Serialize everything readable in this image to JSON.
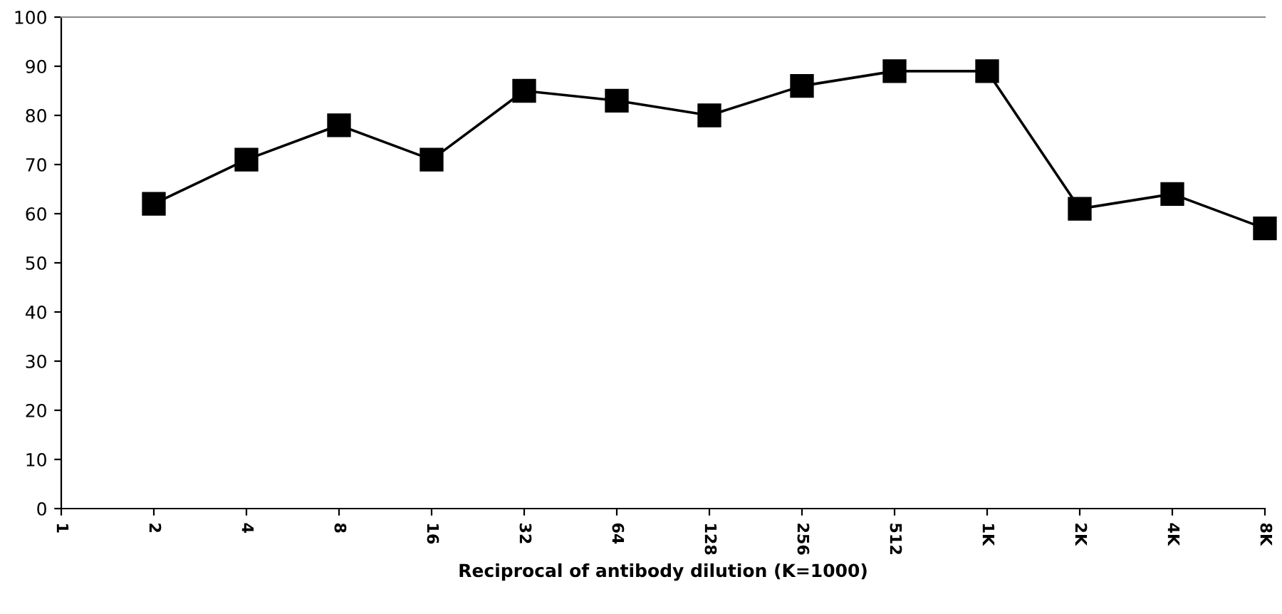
{
  "chart_data": {
    "type": "line",
    "xlabel": "Reciprocal of antibody dilution (K=1000)",
    "categories": [
      "1",
      "2",
      "4",
      "8",
      "16",
      "32",
      "64",
      "128",
      "256",
      "512",
      "1K",
      "2K",
      "4K",
      "8K"
    ],
    "series": [
      {
        "color": "#000000",
        "values": [
          null,
          62,
          71,
          78,
          71,
          85,
          83,
          80,
          86,
          89,
          89,
          61,
          64,
          57
        ]
      }
    ],
    "ylim": [
      0,
      100
    ],
    "yticks": [
      0,
      10,
      20,
      30,
      40,
      50,
      60,
      70,
      80,
      90,
      100
    ],
    "grid": false,
    "legend": false,
    "marker": "square",
    "line_style": "solid"
  }
}
